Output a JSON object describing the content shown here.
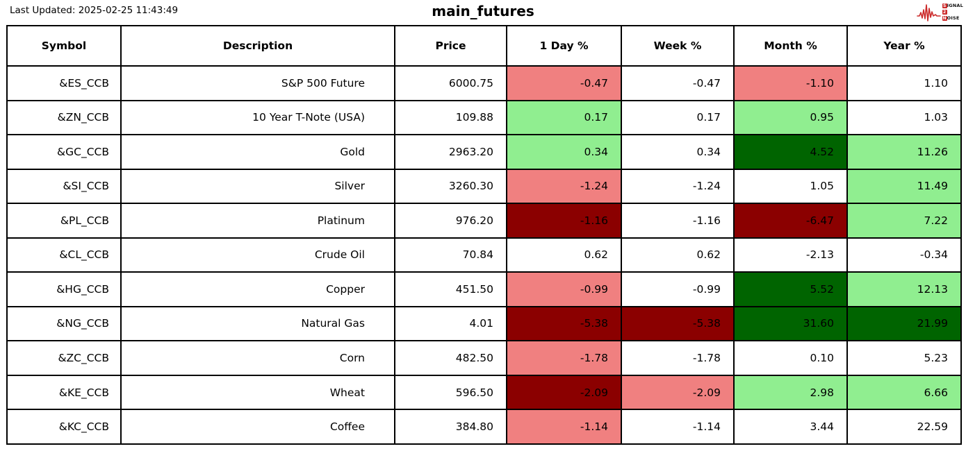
{
  "header": {
    "last_updated": "Last Updated: 2025-02-25 11:43:49",
    "title": "main_futures"
  },
  "logo": {
    "accent": "#cc2a2a",
    "rows": [
      {
        "boxed": "S",
        "rest": "IGNAL"
      },
      {
        "boxed": "2",
        "rest": ""
      },
      {
        "boxed": "N",
        "rest": "OISE"
      }
    ]
  },
  "colors": {
    "light_red": "#F08080",
    "light_green": "#90EE90",
    "dark_red": "#8B0000",
    "dark_green": "#006400",
    "white": "#FFFFFF",
    "border": "#000000"
  },
  "chart_data": {
    "type": "table",
    "title": "main_futures",
    "columns": [
      "Symbol",
      "Description",
      "Price",
      "1 Day %",
      "Week %",
      "Month %",
      "Year %"
    ],
    "rows": [
      {
        "symbol": "&ES_CCB",
        "description": "S&P 500 Future",
        "price": "6000.75",
        "changes": [
          {
            "value": "-0.47",
            "bg": "light_red"
          },
          {
            "value": "-0.47",
            "bg": "white"
          },
          {
            "value": "-1.10",
            "bg": "light_red"
          },
          {
            "value": "1.10",
            "bg": "white"
          }
        ]
      },
      {
        "symbol": "&ZN_CCB",
        "description": "10 Year T-Note (USA)",
        "price": "109.88",
        "changes": [
          {
            "value": "0.17",
            "bg": "light_green"
          },
          {
            "value": "0.17",
            "bg": "white"
          },
          {
            "value": "0.95",
            "bg": "light_green"
          },
          {
            "value": "1.03",
            "bg": "white"
          }
        ]
      },
      {
        "symbol": "&GC_CCB",
        "description": "Gold",
        "price": "2963.20",
        "changes": [
          {
            "value": "0.34",
            "bg": "light_green"
          },
          {
            "value": "0.34",
            "bg": "white"
          },
          {
            "value": "4.52",
            "bg": "dark_green"
          },
          {
            "value": "11.26",
            "bg": "light_green"
          }
        ]
      },
      {
        "symbol": "&SI_CCB",
        "description": "Silver",
        "price": "3260.30",
        "changes": [
          {
            "value": "-1.24",
            "bg": "light_red"
          },
          {
            "value": "-1.24",
            "bg": "white"
          },
          {
            "value": "1.05",
            "bg": "white"
          },
          {
            "value": "11.49",
            "bg": "light_green"
          }
        ]
      },
      {
        "symbol": "&PL_CCB",
        "description": "Platinum",
        "price": "976.20",
        "changes": [
          {
            "value": "-1.16",
            "bg": "dark_red"
          },
          {
            "value": "-1.16",
            "bg": "white"
          },
          {
            "value": "-6.47",
            "bg": "dark_red"
          },
          {
            "value": "7.22",
            "bg": "light_green"
          }
        ]
      },
      {
        "symbol": "&CL_CCB",
        "description": "Crude Oil",
        "price": "70.84",
        "changes": [
          {
            "value": "0.62",
            "bg": "white"
          },
          {
            "value": "0.62",
            "bg": "white"
          },
          {
            "value": "-2.13",
            "bg": "white"
          },
          {
            "value": "-0.34",
            "bg": "white"
          }
        ]
      },
      {
        "symbol": "&HG_CCB",
        "description": "Copper",
        "price": "451.50",
        "changes": [
          {
            "value": "-0.99",
            "bg": "light_red"
          },
          {
            "value": "-0.99",
            "bg": "white"
          },
          {
            "value": "5.52",
            "bg": "dark_green"
          },
          {
            "value": "12.13",
            "bg": "light_green"
          }
        ]
      },
      {
        "symbol": "&NG_CCB",
        "description": "Natural Gas",
        "price": "4.01",
        "changes": [
          {
            "value": "-5.38",
            "bg": "dark_red"
          },
          {
            "value": "-5.38",
            "bg": "dark_red"
          },
          {
            "value": "31.60",
            "bg": "dark_green"
          },
          {
            "value": "21.99",
            "bg": "dark_green"
          }
        ]
      },
      {
        "symbol": "&ZC_CCB",
        "description": "Corn",
        "price": "482.50",
        "changes": [
          {
            "value": "-1.78",
            "bg": "light_red"
          },
          {
            "value": "-1.78",
            "bg": "white"
          },
          {
            "value": "0.10",
            "bg": "white"
          },
          {
            "value": "5.23",
            "bg": "white"
          }
        ]
      },
      {
        "symbol": "&KE_CCB",
        "description": "Wheat",
        "price": "596.50",
        "changes": [
          {
            "value": "-2.09",
            "bg": "dark_red"
          },
          {
            "value": "-2.09",
            "bg": "light_red"
          },
          {
            "value": "2.98",
            "bg": "light_green"
          },
          {
            "value": "6.66",
            "bg": "light_green"
          }
        ]
      },
      {
        "symbol": "&KC_CCB",
        "description": "Coffee",
        "price": "384.80",
        "changes": [
          {
            "value": "-1.14",
            "bg": "light_red"
          },
          {
            "value": "-1.14",
            "bg": "white"
          },
          {
            "value": "3.44",
            "bg": "white"
          },
          {
            "value": "22.59",
            "bg": "white"
          }
        ]
      }
    ]
  }
}
